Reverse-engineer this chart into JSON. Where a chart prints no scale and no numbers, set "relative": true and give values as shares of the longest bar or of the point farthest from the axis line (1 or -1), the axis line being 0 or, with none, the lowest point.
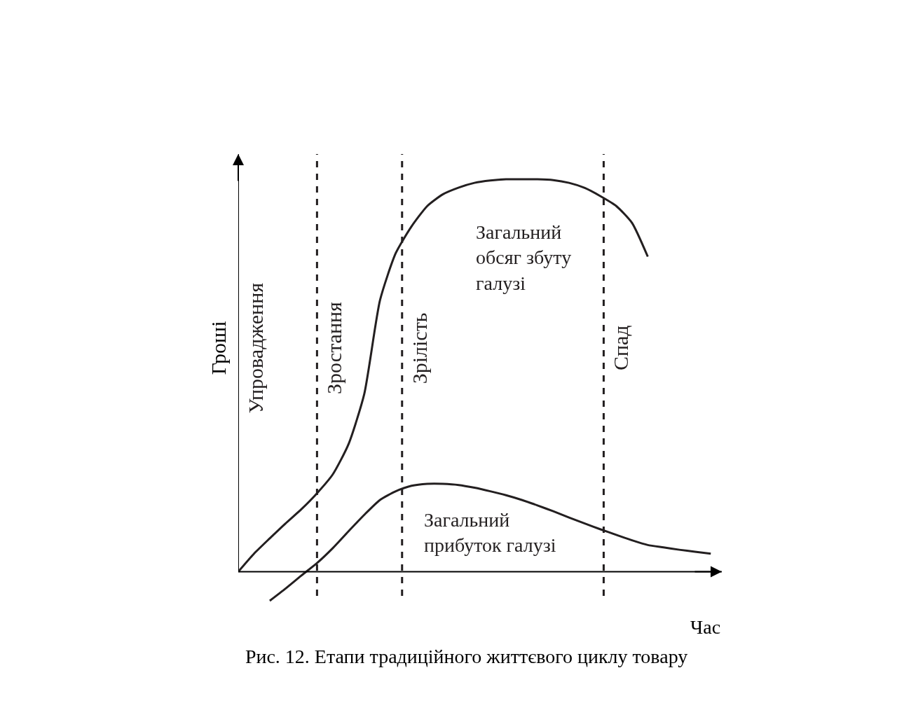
{
  "chart_data": {
    "type": "line",
    "relative": true,
    "title": "Рис. 12. Етапи традиційного життєвого циклу товару",
    "xlabel": "Час",
    "ylabel": "Гроші",
    "categories": [
      null,
      null,
      null,
      null,
      null,
      null,
      null,
      null,
      null,
      null,
      null,
      null,
      null,
      null,
      null,
      null,
      null,
      null,
      null,
      null,
      null,
      null,
      null,
      null,
      null,
      null,
      null,
      null,
      null,
      null,
      null
    ],
    "series": [
      {
        "name": "Загальний обсяг збуту галузі",
        "color": "#231f20",
        "values": [
          0,
          0.046,
          0.085,
          0.123,
          0.159,
          0.2,
          0.248,
          0.325,
          0.453,
          0.692,
          0.812,
          0.88,
          0.932,
          0.962,
          0.979,
          0.991,
          0.997,
          1,
          1,
          1,
          0.998,
          0.991,
          0.978,
          0.957,
          0.932,
          0.889,
          0.803,
          null,
          null,
          null,
          null
        ]
      },
      {
        "name": "Загальний прибуток галузі",
        "color": "#231f20",
        "values": [
          null,
          null,
          -0.074,
          -0.043,
          -0.01,
          0.022,
          0.06,
          0.103,
          0.145,
          0.183,
          0.205,
          0.219,
          0.224,
          0.224,
          0.221,
          0.214,
          0.205,
          0.195,
          0.183,
          0.169,
          0.154,
          0.138,
          0.123,
          0.108,
          0.094,
          0.08,
          0.068,
          0.062,
          0.056,
          0.051,
          0.046
        ]
      }
    ],
    "annotations": [
      "Упровадження",
      "Зростання",
      "Зрілість",
      "Спад"
    ],
    "grid": false,
    "legend": false,
    "marker": "none",
    "line_style": "solid"
  }
}
